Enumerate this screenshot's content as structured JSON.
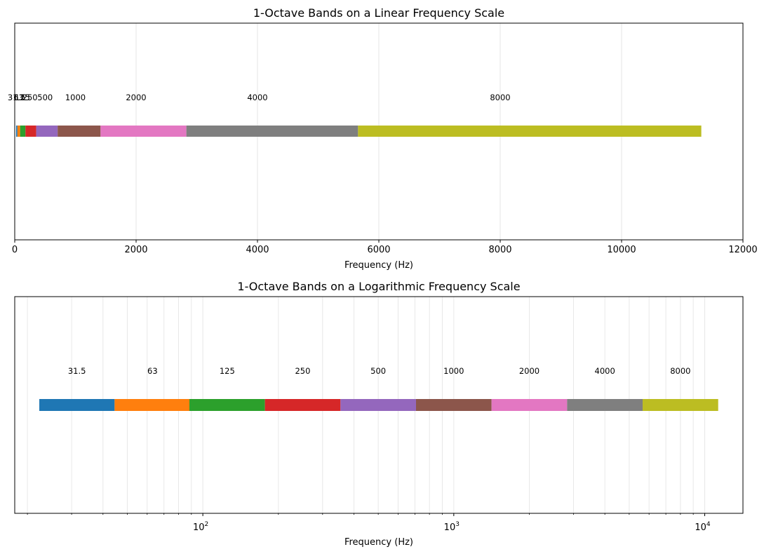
{
  "chart_data": [
    {
      "type": "bar",
      "orientation": "horizontal",
      "title": "1-Octave Bands on a Linear Frequency Scale",
      "xlabel": "Frequency (Hz)",
      "ylabel": "",
      "xscale": "linear",
      "xlim": [
        0,
        12000
      ],
      "xticks": [
        0,
        2000,
        4000,
        6000,
        8000,
        10000,
        12000
      ],
      "xtick_labels": [
        "0",
        "2000",
        "4000",
        "6000",
        "8000",
        "10000",
        "12000"
      ],
      "grid": "vertical",
      "bands": [
        {
          "label": "31.5",
          "low": 22.3,
          "high": 44.5,
          "center": 31.5,
          "color": "#1f77b4"
        },
        {
          "label": "63",
          "low": 44.5,
          "high": 89.1,
          "center": 63,
          "color": "#ff7f0e"
        },
        {
          "label": "125",
          "low": 88.4,
          "high": 176.8,
          "center": 125,
          "color": "#2ca02c"
        },
        {
          "label": "250",
          "low": 176.8,
          "high": 353.6,
          "center": 250,
          "color": "#d62728"
        },
        {
          "label": "500",
          "low": 353.6,
          "high": 707.1,
          "center": 500,
          "color": "#9467bd"
        },
        {
          "label": "1000",
          "low": 707.1,
          "high": 1414.2,
          "center": 1000,
          "color": "#8c564b"
        },
        {
          "label": "2000",
          "low": 1414.2,
          "high": 2828.4,
          "center": 2000,
          "color": "#e377c2"
        },
        {
          "label": "4000",
          "low": 2828.4,
          "high": 5656.9,
          "center": 4000,
          "color": "#7f7f7f"
        },
        {
          "label": "8000",
          "low": 5656.9,
          "high": 11313.7,
          "center": 8000,
          "color": "#bcbd22"
        }
      ]
    },
    {
      "type": "bar",
      "orientation": "horizontal",
      "title": "1-Octave Bands on a Logarithmic Frequency Scale",
      "xlabel": "Frequency (Hz)",
      "ylabel": "",
      "xscale": "log",
      "xlim": [
        17.8,
        14200
      ],
      "xticks": [
        100,
        1000,
        10000
      ],
      "xtick_labels": [
        {
          "base": "10",
          "exp": "2"
        },
        {
          "base": "10",
          "exp": "3"
        },
        {
          "base": "10",
          "exp": "4"
        }
      ],
      "grid": "vertical, major and minor",
      "bands": [
        {
          "label": "31.5",
          "low": 22.3,
          "high": 44.5,
          "center": 31.5,
          "color": "#1f77b4"
        },
        {
          "label": "63",
          "low": 44.5,
          "high": 89.1,
          "center": 63,
          "color": "#ff7f0e"
        },
        {
          "label": "125",
          "low": 88.4,
          "high": 176.8,
          "center": 125,
          "color": "#2ca02c"
        },
        {
          "label": "250",
          "low": 176.8,
          "high": 353.6,
          "center": 250,
          "color": "#d62728"
        },
        {
          "label": "500",
          "low": 353.6,
          "high": 707.1,
          "center": 500,
          "color": "#9467bd"
        },
        {
          "label": "1000",
          "low": 707.1,
          "high": 1414.2,
          "center": 1000,
          "color": "#8c564b"
        },
        {
          "label": "2000",
          "low": 1414.2,
          "high": 2828.4,
          "center": 2000,
          "color": "#e377c2"
        },
        {
          "label": "4000",
          "low": 2828.4,
          "high": 5656.9,
          "center": 4000,
          "color": "#7f7f7f"
        },
        {
          "label": "8000",
          "low": 5656.9,
          "high": 11313.7,
          "center": 8000,
          "color": "#bcbd22"
        }
      ]
    }
  ]
}
